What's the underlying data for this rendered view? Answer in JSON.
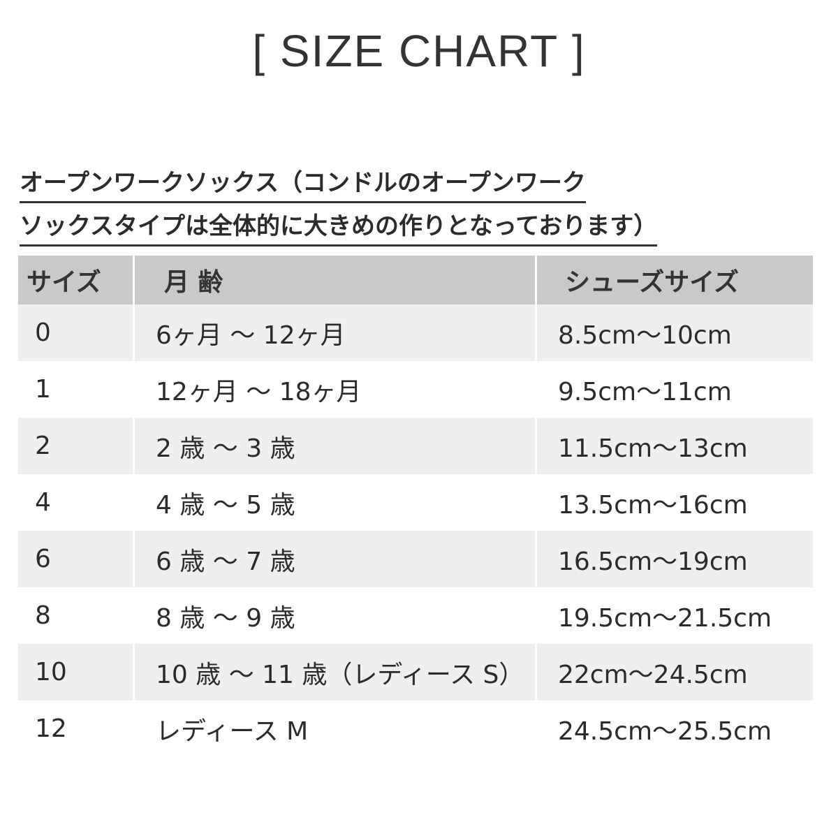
{
  "header": {
    "title": "[ SIZE CHART ]"
  },
  "note": {
    "lines": [
      "オープンワークソックス（コンドルのオープンワーク",
      "ソックスタイプは全体的に大きめの作りとなっております）"
    ]
  },
  "table": {
    "columns": [
      "サイズ",
      "月 齢",
      "シューズサイズ"
    ],
    "rows": [
      [
        "0",
        "6ヶ月 〜 12ヶ月",
        "8.5cm〜10cm"
      ],
      [
        "1",
        "12ヶ月 〜 18ヶ月",
        "9.5cm〜11cm"
      ],
      [
        "2",
        "2 歳 〜 3 歳",
        "11.5cm〜13cm"
      ],
      [
        "4",
        "4 歳 〜 5 歳",
        "13.5cm〜16cm"
      ],
      [
        "6",
        "6 歳 〜 7 歳",
        "16.5cm〜19cm"
      ],
      [
        "8",
        "8 歳 〜 9 歳",
        "19.5cm〜21.5cm"
      ],
      [
        "10",
        "10 歳 〜 11 歳（レディース S）",
        "22cm〜24.5cm"
      ],
      [
        "12",
        "レディース M",
        "24.5cm〜25.5cm"
      ]
    ]
  }
}
